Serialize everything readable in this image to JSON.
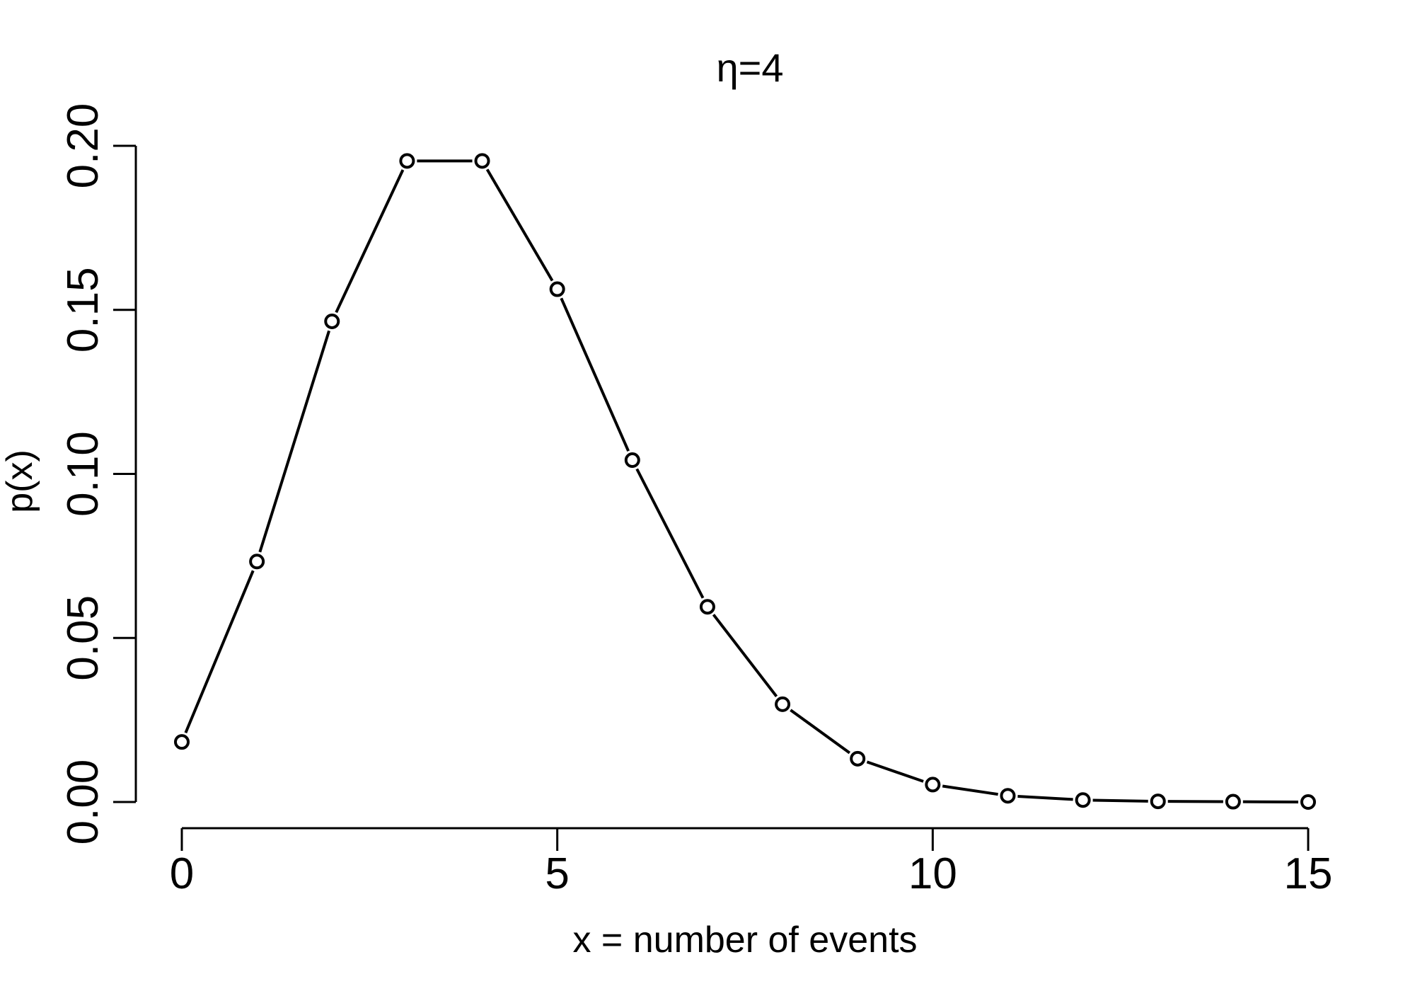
{
  "chart_data": {
    "type": "line",
    "title": "η=4",
    "xlabel": "x = number of events",
    "ylabel": "p(x)",
    "xlim": [
      0,
      15
    ],
    "ylim": [
      0,
      0.2
    ],
    "x_ticks": [
      0,
      5,
      10,
      15
    ],
    "y_ticks": [
      0.0,
      0.05,
      0.1,
      0.15,
      0.2
    ],
    "x_tick_labels": [
      "0",
      "5",
      "10",
      "15"
    ],
    "y_tick_labels": [
      "0.00",
      "0.05",
      "0.10",
      "0.15",
      "0.20"
    ],
    "grid": false,
    "series": [
      {
        "x": [
          0,
          1,
          2,
          3,
          4,
          5,
          6,
          7,
          8,
          9,
          10,
          11,
          12,
          13,
          14,
          15
        ],
        "values": [
          0.0183,
          0.0733,
          0.1465,
          0.1954,
          0.1954,
          0.1563,
          0.1042,
          0.0595,
          0.0298,
          0.0132,
          0.0053,
          0.0019,
          0.0006,
          0.0002,
          0.0001,
          0.0
        ]
      }
    ],
    "colors": {
      "line": "#000000",
      "marker_fill": "#ffffff"
    }
  }
}
